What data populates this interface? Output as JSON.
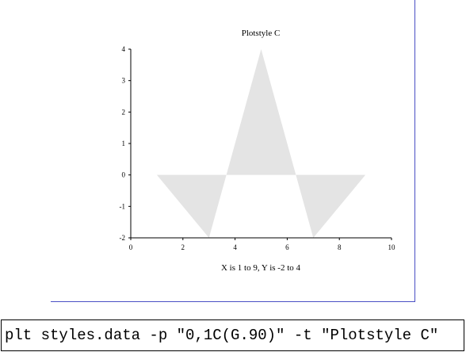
{
  "chart_data": {
    "type": "area",
    "title": "Plotstyle C",
    "xlabel": "X is 1 to 9, Y is -2 to 4",
    "ylabel": "",
    "xlim": [
      0,
      10
    ],
    "ylim": [
      -2,
      4
    ],
    "xticks": [
      "0",
      "2",
      "4",
      "6",
      "8",
      "10"
    ],
    "yticks": [
      "4",
      "3",
      "2",
      "1",
      "0",
      "-1",
      "-2"
    ],
    "fill_color": "#e4e4e4",
    "fill_baseline": 0,
    "grid": false,
    "legend": "none",
    "series": [
      {
        "x": [
          1,
          3,
          5,
          7,
          9
        ],
        "values": [
          0,
          -2,
          4,
          -2,
          0
        ]
      }
    ]
  },
  "command": {
    "text": "plt styles.data -p \"0,1C(G.90)\" -t \"Plotstyle C\""
  },
  "colors": {
    "frame_border": "#4a4fc4"
  }
}
